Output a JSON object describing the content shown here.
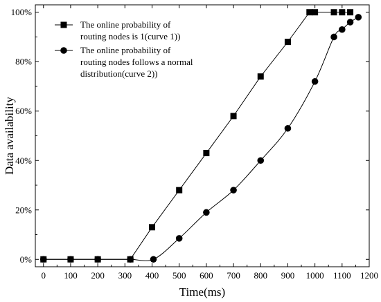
{
  "chart_data": {
    "type": "line",
    "xlabel": "Time(ms)",
    "ylabel": "Data availability",
    "xlim": [
      -30,
      1200
    ],
    "ylim": [
      -3,
      103
    ],
    "x_ticks": [
      0,
      100,
      200,
      300,
      400,
      500,
      600,
      700,
      800,
      900,
      1000,
      1100,
      1200
    ],
    "y_ticks": [
      0,
      20,
      40,
      60,
      80,
      100
    ],
    "y_tick_labels": [
      "0%",
      "20%",
      "40%",
      "60%",
      "80%",
      "100%"
    ],
    "grid": false,
    "legend_position": "top-left",
    "series": [
      {
        "name_lines": [
          "The online probability of",
          "routing nodes is 1(curve 1))"
        ],
        "marker": "square",
        "curve": "linear",
        "x": [
          0,
          100,
          200,
          320,
          400,
          500,
          600,
          700,
          800,
          900,
          980,
          1000,
          1070,
          1100,
          1130
        ],
        "y": [
          0,
          0,
          0,
          0,
          13,
          28,
          43,
          58,
          74,
          88,
          100,
          100,
          100,
          100,
          100
        ]
      },
      {
        "name_lines": [
          "The online probability of",
          "routing nodes follows a normal",
          "distribution(curve 2))"
        ],
        "marker": "circle",
        "curve": "smooth",
        "x": [
          0,
          100,
          200,
          320,
          405,
          500,
          600,
          700,
          800,
          900,
          1000,
          1070,
          1100,
          1130,
          1160
        ],
        "y": [
          0,
          0,
          0,
          0,
          0,
          8.5,
          19,
          28,
          40,
          53,
          72,
          90,
          93,
          96,
          98
        ]
      }
    ],
    "colors": {
      "line": "#000000",
      "marker": "#000000",
      "axis": "#000000"
    }
  }
}
